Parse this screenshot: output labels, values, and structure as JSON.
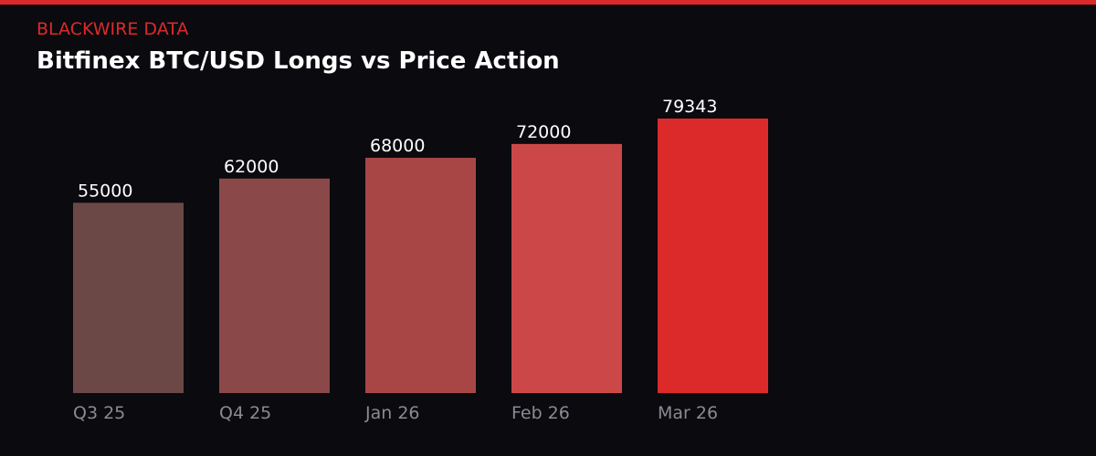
{
  "header": {
    "brand": "BLACKWIRE DATA",
    "title": "Bitfinex BTC/USD Longs vs Price Action"
  },
  "colors": {
    "background": "#0a0a0f",
    "accent": "#dc2a2a"
  },
  "chart_data": {
    "type": "bar",
    "title": "Bitfinex BTC/USD Longs vs Price Action",
    "categories": [
      "Q3 25",
      "Q4 25",
      "Jan 26",
      "Feb 26",
      "Mar 26"
    ],
    "values": [
      55000,
      62000,
      68000,
      72000,
      79343
    ],
    "bar_colors": [
      "#6b4846",
      "#8b4848",
      "#a84646",
      "#cc4848",
      "#dc2a2a"
    ],
    "data_labels": true,
    "grid": false,
    "ylim": [
      0,
      79343
    ]
  }
}
